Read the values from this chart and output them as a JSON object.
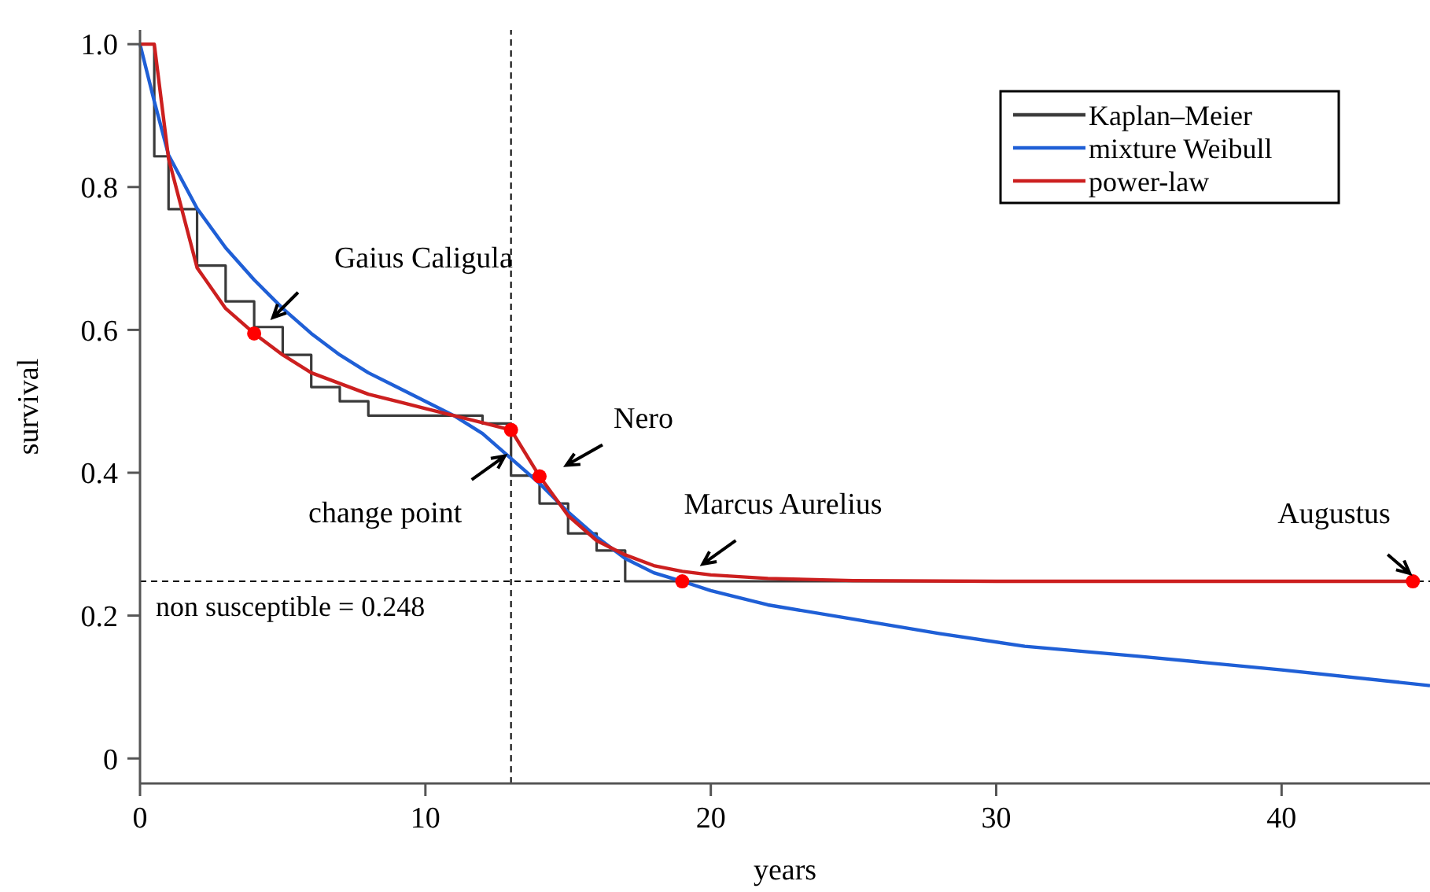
{
  "chart_data": {
    "type": "line",
    "xlabel": "years",
    "ylabel": "survival",
    "xlim": [
      0,
      45.2
    ],
    "ylim": [
      -0.035,
      1.02
    ],
    "xticks": [
      0,
      10,
      20,
      30,
      40
    ],
    "yticks": [
      0,
      0.2,
      0.4,
      0.6,
      0.8,
      {
        "value": 1,
        "label": "1.0"
      }
    ],
    "legend": "top right",
    "grid": false,
    "series": [
      {
        "name": "Kaplan–Meier",
        "type": "step",
        "color": "#3a3a3a",
        "x": [
          0,
          0.5,
          1,
          2,
          3,
          4,
          5,
          6,
          7,
          8,
          12,
          13,
          14,
          15,
          16,
          17,
          44.6
        ],
        "values": [
          1,
          0.843,
          0.769,
          0.69,
          0.64,
          0.604,
          0.565,
          0.52,
          0.5,
          0.48,
          0.469,
          0.396,
          0.357,
          0.315,
          0.291,
          0.248,
          0.248
        ]
      },
      {
        "name": "mixture Weibull",
        "color": "#1f5fd6",
        "x": [
          0,
          0.5,
          1,
          2,
          3,
          4,
          5,
          6,
          7,
          8,
          9,
          10,
          11,
          12,
          13,
          14,
          15,
          16,
          17,
          18,
          19,
          20,
          22,
          25,
          28,
          31,
          35,
          40,
          45.2
        ],
        "values": [
          1,
          0.92,
          0.845,
          0.77,
          0.715,
          0.67,
          0.63,
          0.595,
          0.565,
          0.54,
          0.52,
          0.5,
          0.48,
          0.455,
          0.42,
          0.385,
          0.345,
          0.31,
          0.28,
          0.26,
          0.248,
          0.235,
          0.215,
          0.195,
          0.175,
          0.157,
          0.143,
          0.124,
          0.102
        ]
      },
      {
        "name": "power-law",
        "color": "#cc1f1f",
        "x": [
          0,
          0.5,
          1,
          2,
          3,
          4,
          5,
          6,
          8,
          10,
          12,
          13,
          14,
          15,
          16,
          17,
          18,
          19,
          20,
          22,
          25,
          30,
          44.6
        ],
        "values": [
          1,
          1,
          0.84,
          0.687,
          0.63,
          0.595,
          0.565,
          0.54,
          0.51,
          0.49,
          0.47,
          0.46,
          0.395,
          0.34,
          0.305,
          0.285,
          0.27,
          0.262,
          0.257,
          0.252,
          0.249,
          0.248,
          0.248
        ]
      },
      {
        "type": "scatter",
        "color": "#ff0000",
        "marker": "circle",
        "x": [
          4,
          13,
          14,
          19,
          44.6
        ],
        "values": [
          0.595,
          0.46,
          0.395,
          0.248,
          0.248
        ]
      }
    ],
    "ref_lines": [
      {
        "axis": "y",
        "value": 0.248,
        "label": "non susceptible = 0.248",
        "line_style": "dashed",
        "color": "#000000"
      },
      {
        "axis": "x",
        "value": 13,
        "line_style": "dashed",
        "color": "#000000"
      }
    ],
    "annotations": [
      {
        "text": "Gaius Caligula",
        "x": 4.6,
        "y": 0.615
      },
      {
        "text": "change point",
        "x": 13,
        "y": 0.43
      },
      {
        "text": "Nero",
        "x": 14,
        "y": 0.395
      },
      {
        "text": "Marcus Aurelius",
        "x": 19,
        "y": 0.248
      },
      {
        "text": "Augustus",
        "x": 44.6,
        "y": 0.248
      }
    ]
  }
}
